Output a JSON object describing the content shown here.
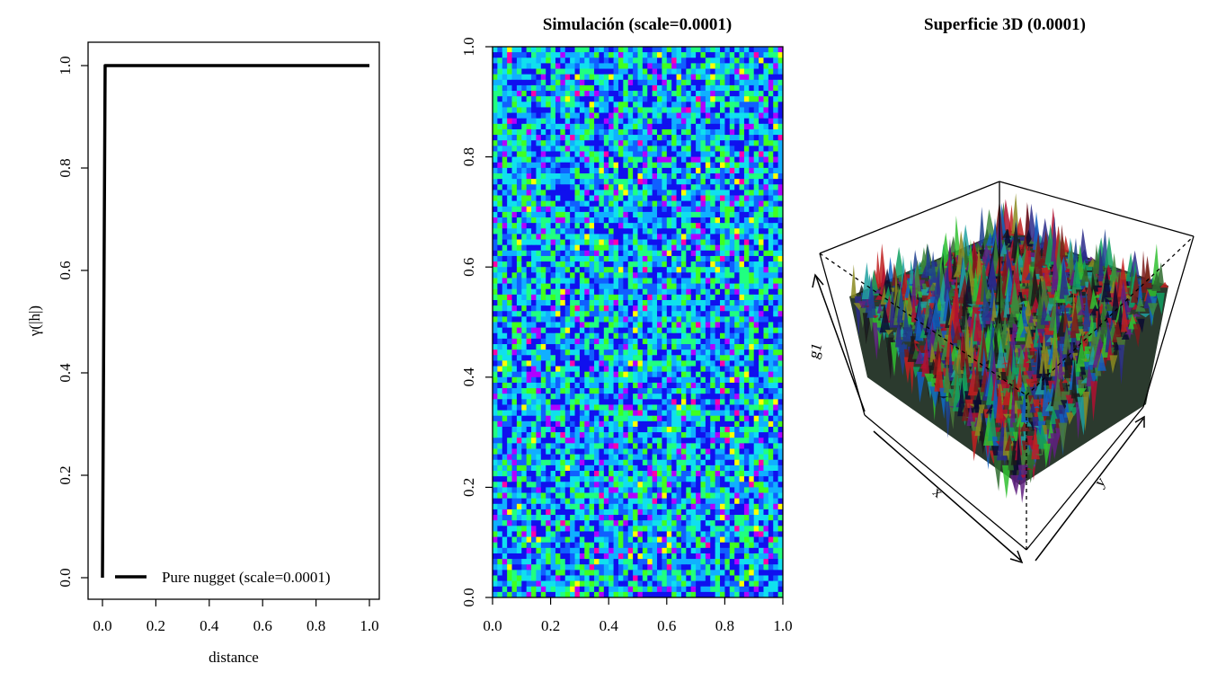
{
  "chart_data": [
    {
      "type": "line",
      "title": "",
      "xlabel": "distance",
      "ylabel": "γ(|h|)",
      "xlim": [
        0,
        1
      ],
      "ylim": [
        0,
        1
      ],
      "xticks": [
        "0.0",
        "0.2",
        "0.4",
        "0.6",
        "0.8",
        "1.0"
      ],
      "yticks": [
        "0.0",
        "0.2",
        "0.4",
        "0.6",
        "0.8",
        "1.0"
      ],
      "series": [
        {
          "name": "Pure nugget (scale=0.0001)",
          "x": [
            0.0,
            0.01,
            1.0
          ],
          "y": [
            0.0,
            1.0,
            1.0
          ],
          "color": "#000000"
        }
      ],
      "legend": {
        "position": "bottom-right",
        "label": "Pure nugget (scale=0.0001)"
      }
    },
    {
      "type": "heatmap",
      "title": "Simulación (scale=0.0001)",
      "xlim": [
        0,
        1
      ],
      "ylim": [
        0,
        1
      ],
      "xticks": [
        "0.0",
        "0.2",
        "0.4",
        "0.6",
        "0.8",
        "1.0"
      ],
      "yticks": [
        "0.0",
        "0.2",
        "0.4",
        "0.6",
        "0.8",
        "1.0"
      ],
      "grid_size": [
        60,
        100
      ],
      "palette": [
        "#ff00aa",
        "#b000ff",
        "#1010ee",
        "#1060ff",
        "#10b0ff",
        "#10e0ee",
        "#20ff80",
        "#40ff20",
        "#ffff00"
      ],
      "description": "pure-noise random field, values mostly in blue/cyan/green range"
    },
    {
      "type": "surface3d",
      "title": "Superficie 3D (0.0001)",
      "axis_labels": {
        "x": "x",
        "y": "y",
        "z": "g1"
      },
      "description": "3D perspective of noisy random field with multicolored spikes"
    }
  ]
}
